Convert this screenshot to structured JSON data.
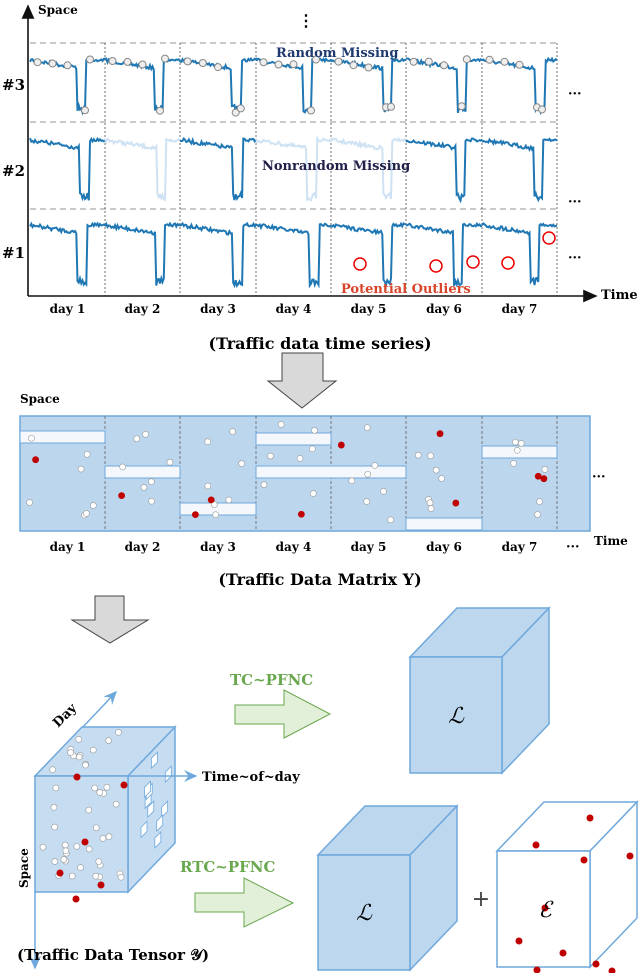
{
  "colors": {
    "series": "#1f77b4",
    "missing_faded": "#cfe2f3",
    "matrix_fill": "#bcd6ee",
    "matrix_stroke": "#6fa8dc",
    "outlier": "#c00000",
    "method": "#6aa84f",
    "arrow_fill": "#e2efd9",
    "gray_arrow": "#d9d9d9"
  },
  "timeseries": {
    "y_axis": "Space",
    "x_axis": "Time",
    "more_rows": "⋮",
    "more_cols": "···",
    "rows": [
      "#3",
      "#2",
      "#1"
    ],
    "days": [
      "day 1",
      "day 2",
      "day 3",
      "day 4",
      "day 5",
      "day 6",
      "day 7"
    ],
    "annotations": {
      "random": "Random Missing",
      "nonrandom": "Nonrandom Missing",
      "outliers": "Potential Outliers"
    },
    "caption": "(Traffic data time series)"
  },
  "matrix": {
    "y_axis": "Space",
    "x_axis": "Time",
    "more_cols": "···",
    "days": [
      "day 1",
      "day 2",
      "day 3",
      "day 4",
      "day 5",
      "day 6",
      "day 7"
    ],
    "caption": "(Traffic Data Matrix Y)"
  },
  "tensor": {
    "axis_day": "Day",
    "axis_time": "Time~of~day",
    "axis_space": "Space",
    "caption": "(Traffic Data Tensor 𝒴)"
  },
  "methods": {
    "tc": "TC~PFNC",
    "rtc": "RTC~PFNC",
    "low_rank": "ℒ",
    "sparse": "ℰ",
    "plus": "+"
  }
}
